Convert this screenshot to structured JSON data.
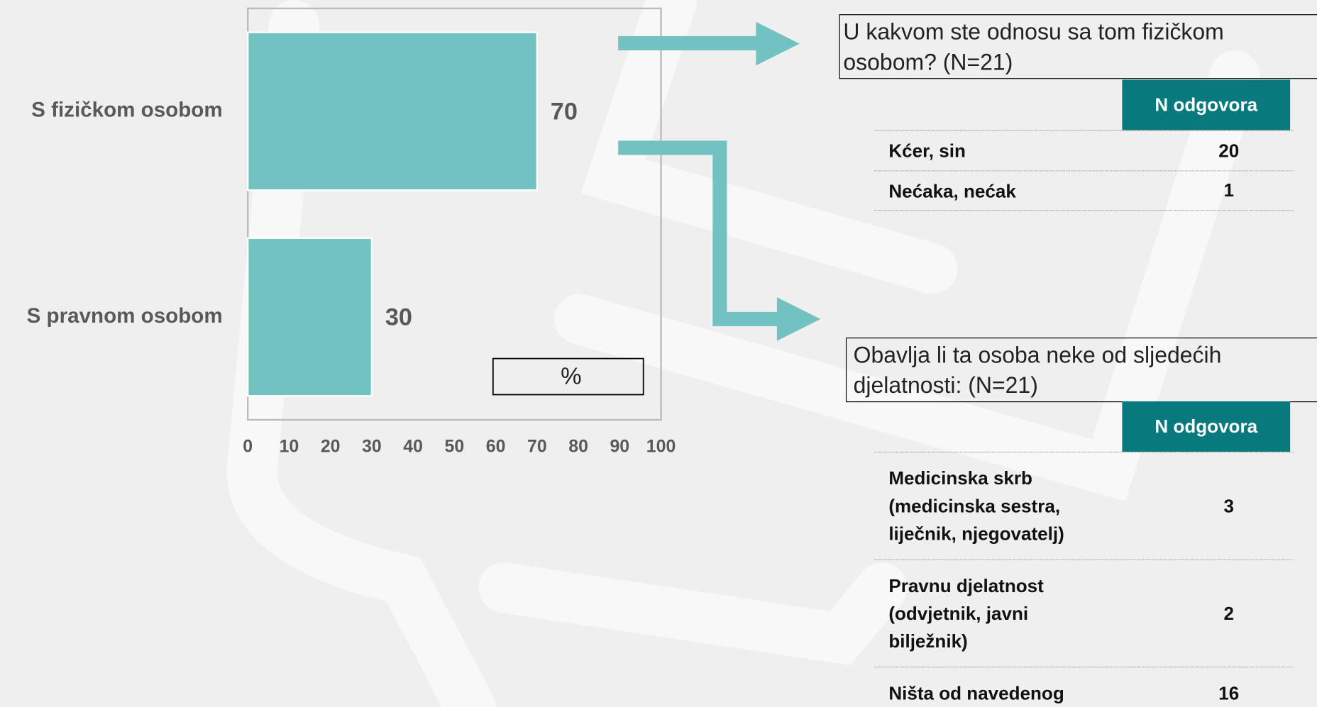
{
  "chart_data": {
    "type": "hbar",
    "categories": [
      "S fizičkom osobom",
      "S pravnom osobom"
    ],
    "values": [
      70,
      30
    ],
    "color": "#72c2c2",
    "xlim": [
      0,
      100
    ],
    "xticks": [
      0,
      10,
      20,
      30,
      40,
      50,
      60,
      70,
      80,
      90,
      100
    ],
    "axis_label": "%"
  },
  "tables": [
    {
      "title": "U kakvom ste odnosu sa tom fizičkom osobom? (N=21)",
      "header": "N odgovora",
      "rows": [
        [
          "Kćer, sin",
          20
        ],
        [
          "Nećaka, nećak",
          1
        ]
      ]
    },
    {
      "title": "Obavlja li ta osoba neke od sljedećih djelatnosti: (N=21)",
      "header": "N odgovora",
      "rows": [
        [
          "Medicinska skrb (medicinska sestra, liječnik, njegovatelj)",
          3
        ],
        [
          "Pravnu djelatnost (odvjetnik, javni bilježnik)",
          2
        ],
        [
          "Ništa od navedenog",
          16
        ]
      ]
    }
  ]
}
